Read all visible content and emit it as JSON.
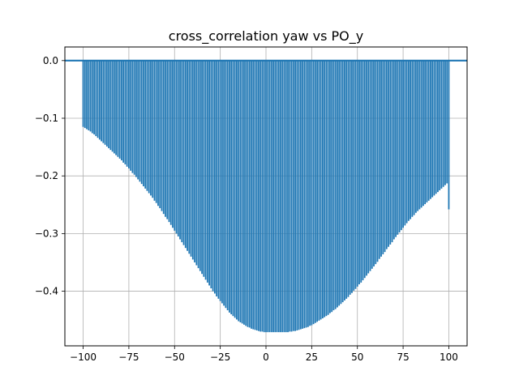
{
  "chart_data": {
    "type": "bar",
    "title": "cross_correlation yaw vs PO_y",
    "xlabel": "",
    "ylabel": "",
    "xlim": [
      -110,
      110
    ],
    "ylim": [
      -0.4947,
      0.0236
    ],
    "grid": true,
    "color": "#1f77b4",
    "x_ticks": [
      -100,
      -75,
      -50,
      -25,
      0,
      25,
      50,
      75,
      100
    ],
    "x_tick_labels": [
      "−100",
      "−75",
      "−50",
      "−25",
      "0",
      "25",
      "50",
      "75",
      "100"
    ],
    "y_ticks": [
      0.0,
      -0.1,
      -0.2,
      -0.3,
      -0.4
    ],
    "y_tick_labels": [
      "0.0",
      "−0.1",
      "−0.2",
      "−0.3",
      "−0.4"
    ],
    "lags": {
      "start": -100,
      "end": 100,
      "step": 1
    },
    "baseline": 0,
    "values": [
      -0.115,
      -0.117,
      -0.119,
      -0.121,
      -0.123,
      -0.126,
      -0.128,
      -0.131,
      -0.134,
      -0.137,
      -0.14,
      -0.143,
      -0.146,
      -0.149,
      -0.152,
      -0.155,
      -0.158,
      -0.161,
      -0.164,
      -0.167,
      -0.17,
      -0.173,
      -0.177,
      -0.18,
      -0.184,
      -0.187,
      -0.191,
      -0.195,
      -0.198,
      -0.202,
      -0.206,
      -0.21,
      -0.214,
      -0.218,
      -0.222,
      -0.226,
      -0.23,
      -0.234,
      -0.238,
      -0.243,
      -0.247,
      -0.252,
      -0.256,
      -0.261,
      -0.266,
      -0.271,
      -0.275,
      -0.28,
      -0.285,
      -0.29,
      -0.295,
      -0.3,
      -0.305,
      -0.31,
      -0.315,
      -0.32,
      -0.325,
      -0.33,
      -0.335,
      -0.34,
      -0.345,
      -0.35,
      -0.355,
      -0.36,
      -0.365,
      -0.37,
      -0.375,
      -0.38,
      -0.385,
      -0.39,
      -0.395,
      -0.4,
      -0.404,
      -0.409,
      -0.413,
      -0.417,
      -0.421,
      -0.425,
      -0.429,
      -0.433,
      -0.437,
      -0.44,
      -0.443,
      -0.446,
      -0.449,
      -0.452,
      -0.454,
      -0.456,
      -0.458,
      -0.46,
      -0.462,
      -0.463,
      -0.465,
      -0.466,
      -0.467,
      -0.468,
      -0.469,
      -0.47,
      -0.47,
      -0.471,
      -0.471,
      -0.471,
      -0.471,
      -0.471,
      -0.471,
      -0.471,
      -0.471,
      -0.471,
      -0.471,
      -0.471,
      -0.471,
      -0.471,
      -0.471,
      -0.47,
      -0.47,
      -0.469,
      -0.469,
      -0.468,
      -0.467,
      -0.466,
      -0.465,
      -0.464,
      -0.463,
      -0.462,
      -0.46,
      -0.459,
      -0.457,
      -0.455,
      -0.453,
      -0.451,
      -0.449,
      -0.447,
      -0.445,
      -0.443,
      -0.441,
      -0.438,
      -0.436,
      -0.433,
      -0.431,
      -0.428,
      -0.425,
      -0.422,
      -0.419,
      -0.416,
      -0.413,
      -0.41,
      -0.406,
      -0.403,
      -0.399,
      -0.396,
      -0.392,
      -0.388,
      -0.385,
      -0.381,
      -0.377,
      -0.373,
      -0.369,
      -0.365,
      -0.361,
      -0.357,
      -0.353,
      -0.349,
      -0.344,
      -0.34,
      -0.336,
      -0.332,
      -0.327,
      -0.323,
      -0.319,
      -0.315,
      -0.31,
      -0.306,
      -0.302,
      -0.298,
      -0.294,
      -0.29,
      -0.286,
      -0.282,
      -0.278,
      -0.275,
      -0.271,
      -0.268,
      -0.264,
      -0.261,
      -0.258,
      -0.255,
      -0.252,
      -0.249,
      -0.246,
      -0.243,
      -0.24,
      -0.237,
      -0.234,
      -0.231,
      -0.228,
      -0.225,
      -0.222,
      -0.219,
      -0.216,
      -0.213,
      -0.258
    ]
  }
}
